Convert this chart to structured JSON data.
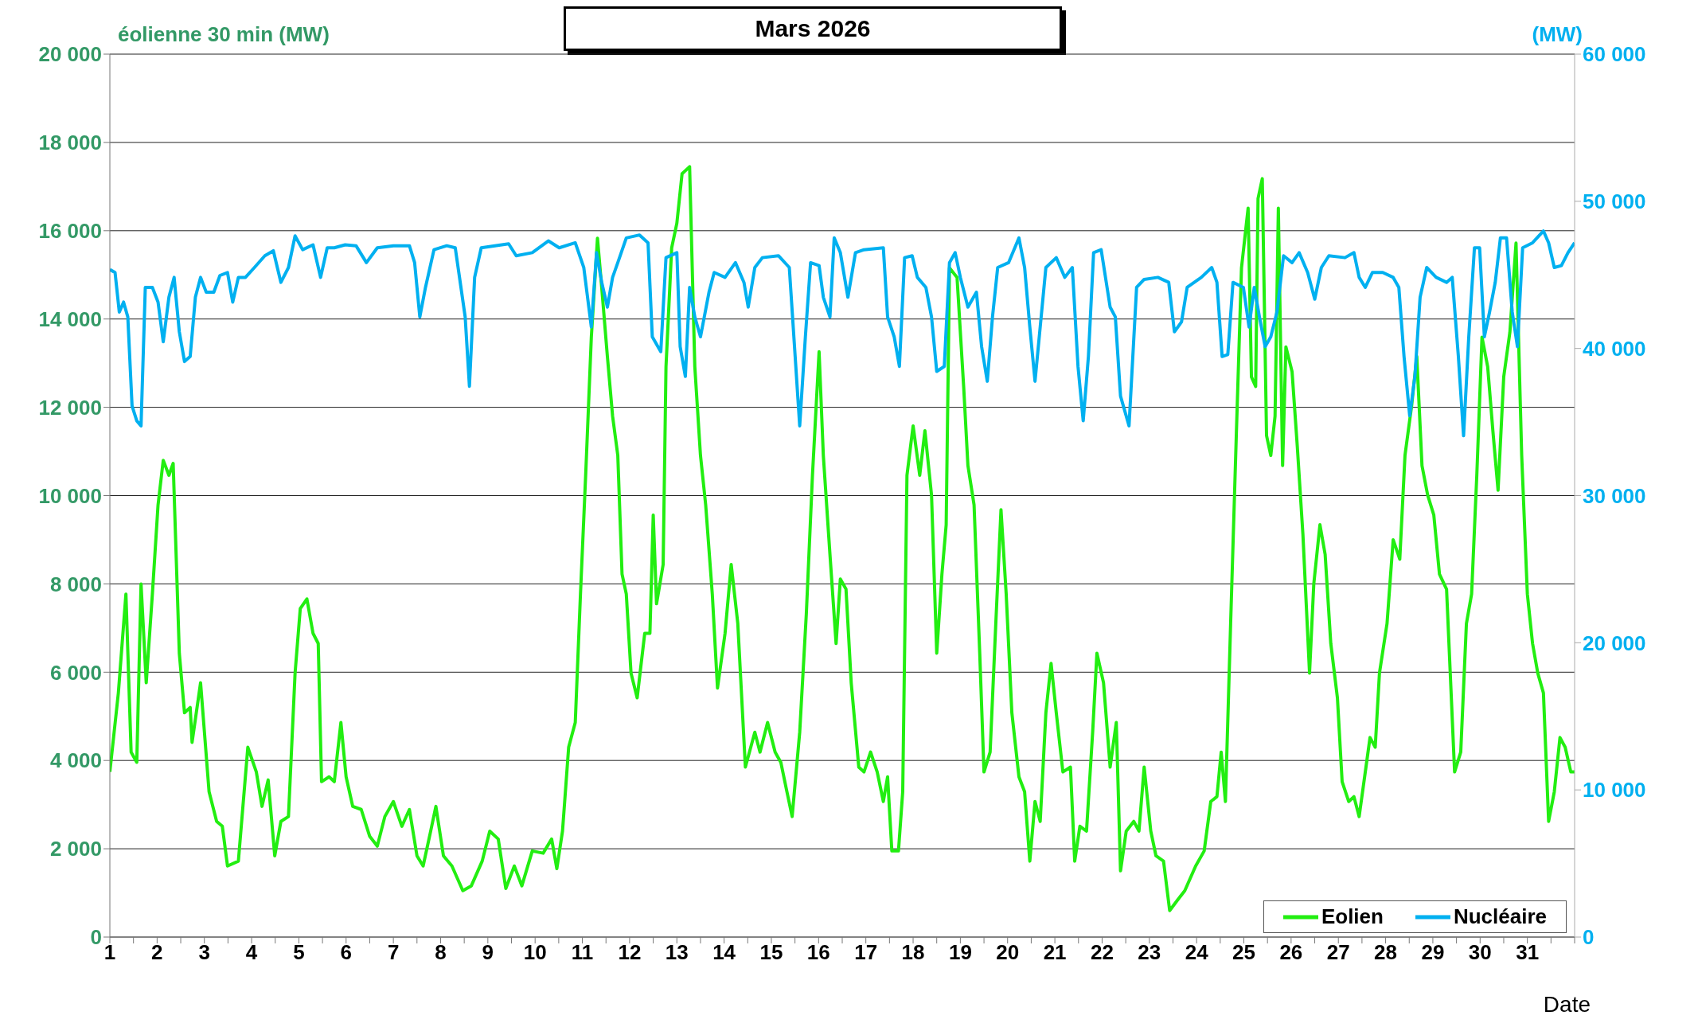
{
  "chart_data": {
    "type": "line",
    "title": "Mars 2026",
    "ylabel": "éolienne 30 min (MW)",
    "y2label": "(MW)",
    "xlabel": "Date",
    "xlim": [
      1,
      32
    ],
    "xticks": [
      1,
      {
        "value": 1.5,
        "label": null
      },
      2,
      {
        "value": 2.5,
        "label": null
      },
      3,
      {
        "value": 3.5,
        "label": null
      },
      4,
      {
        "value": 4.5,
        "label": null
      },
      5,
      {
        "value": 5.5,
        "label": null
      },
      6,
      {
        "value": 6.5,
        "label": null
      },
      7,
      {
        "value": 7.5,
        "label": null
      },
      8,
      {
        "value": 8.5,
        "label": null
      },
      9,
      {
        "value": 9.5,
        "label": null
      },
      10,
      {
        "value": 10.5,
        "label": null
      },
      11,
      {
        "value": 11.5,
        "label": null
      },
      12,
      {
        "value": 12.5,
        "label": null
      },
      13,
      {
        "value": 13.5,
        "label": null
      },
      14,
      {
        "value": 14.5,
        "label": null
      },
      15,
      {
        "value": 15.5,
        "label": null
      },
      16,
      {
        "value": 16.5,
        "label": null
      },
      17,
      {
        "value": 17.5,
        "label": null
      },
      18,
      {
        "value": 18.5,
        "label": null
      },
      19,
      {
        "value": 19.5,
        "label": null
      },
      20,
      {
        "value": 20.5,
        "label": null
      },
      21,
      {
        "value": 21.5,
        "label": null
      },
      22,
      {
        "value": 22.5,
        "label": null
      },
      23,
      {
        "value": 23.5,
        "label": null
      },
      24,
      {
        "value": 24.5,
        "label": null
      },
      25,
      {
        "value": 25.5,
        "label": null
      },
      26,
      {
        "value": 26.5,
        "label": null
      },
      27,
      {
        "value": 27.5,
        "label": null
      },
      28,
      {
        "value": 28.5,
        "label": null
      },
      29,
      {
        "value": 29.5,
        "label": null
      },
      30,
      {
        "value": 30.5,
        "label": null
      },
      31,
      {
        "value": 31.5,
        "label": null
      },
      {
        "value": 32,
        "label": null
      }
    ],
    "ylim": [
      0,
      20000
    ],
    "yticks": [
      0,
      {
        "value": 2000,
        "label": "2 000"
      },
      {
        "value": 4000,
        "label": "4 000"
      },
      {
        "value": 6000,
        "label": "6 000"
      },
      {
        "value": 8000,
        "label": "8 000"
      },
      {
        "value": 10000,
        "label": "10 000"
      },
      {
        "value": 12000,
        "label": "12 000"
      },
      {
        "value": 14000,
        "label": "14 000"
      },
      {
        "value": 16000,
        "label": "16 000"
      },
      {
        "value": 18000,
        "label": "18 000"
      },
      {
        "value": 20000,
        "label": "20 000"
      }
    ],
    "y2lim": [
      0,
      60000
    ],
    "y2ticks": [
      0,
      {
        "value": 10000,
        "label": "10 000"
      },
      {
        "value": 20000,
        "label": "20 000"
      },
      {
        "value": 30000,
        "label": "30 000"
      },
      {
        "value": 40000,
        "label": "40 000"
      },
      {
        "value": 50000,
        "label": "50 000"
      },
      {
        "value": 60000,
        "label": "60 000"
      }
    ],
    "grid": "y",
    "legend": "bottom",
    "marker": "none",
    "line_style": "solid",
    "series": [
      {
        "name": "Eolien",
        "color": "#22ee11",
        "x": [
          1.0,
          1.18,
          1.34,
          1.45,
          1.57,
          1.66,
          1.77,
          1.9,
          2.02,
          2.13,
          2.25,
          2.34,
          2.47,
          2.58,
          2.7,
          2.74,
          2.92,
          3.1,
          3.26,
          3.38,
          3.49,
          3.72,
          3.92,
          4.1,
          4.22,
          4.35,
          4.49,
          4.62,
          4.78,
          4.92,
          5.03,
          5.17,
          5.3,
          5.41,
          5.48,
          5.64,
          5.75,
          5.89,
          6.0,
          6.14,
          6.32,
          6.5,
          6.66,
          6.82,
          7.0,
          7.18,
          7.34,
          7.5,
          7.63,
          7.79,
          7.9,
          8.06,
          8.24,
          8.47,
          8.65,
          8.88,
          9.04,
          9.22,
          9.38,
          9.56,
          9.72,
          9.94,
          10.17,
          10.35,
          10.46,
          10.58,
          10.71,
          10.85,
          10.96,
          11.07,
          11.19,
          11.32,
          11.41,
          11.53,
          11.64,
          11.75,
          11.84,
          11.93,
          12.03,
          12.16,
          12.32,
          12.43,
          12.5,
          12.57,
          12.71,
          12.77,
          12.89,
          13.0,
          13.11,
          13.27,
          13.38,
          13.5,
          13.61,
          13.75,
          13.86,
          14.02,
          14.15,
          14.29,
          14.45,
          14.65,
          14.76,
          14.92,
          15.08,
          15.2,
          15.33,
          15.44,
          15.6,
          15.74,
          15.87,
          16.01,
          16.1,
          16.24,
          16.37,
          16.46,
          16.58,
          16.69,
          16.85,
          16.96,
          17.1,
          17.24,
          17.37,
          17.46,
          17.55,
          17.69,
          17.78,
          17.87,
          18.0,
          18.14,
          18.25,
          18.39,
          18.5,
          18.61,
          18.7,
          18.77,
          18.93,
          19.07,
          19.16,
          19.29,
          19.41,
          19.5,
          19.63,
          19.75,
          19.86,
          19.97,
          20.09,
          20.24,
          20.36,
          20.47,
          20.58,
          20.69,
          20.81,
          20.92,
          21.03,
          21.17,
          21.33,
          21.42,
          21.53,
          21.67,
          21.8,
          21.89,
          22.03,
          22.17,
          22.3,
          22.39,
          22.51,
          22.67,
          22.78,
          22.89,
          23.03,
          23.14,
          23.3,
          23.43,
          23.59,
          23.75,
          23.98,
          24.16,
          24.3,
          24.43,
          24.52,
          24.61,
          24.72,
          24.84,
          24.95,
          25.09,
          25.16,
          25.25,
          25.3,
          25.39,
          25.48,
          25.57,
          25.66,
          25.73,
          25.82,
          25.89,
          26.02,
          26.13,
          26.25,
          26.39,
          26.48,
          26.61,
          26.72,
          26.84,
          26.98,
          27.08,
          27.22,
          27.33,
          27.44,
          27.57,
          27.67,
          27.78,
          27.87,
          28.03,
          28.16,
          28.3,
          28.41,
          28.55,
          28.66,
          28.77,
          28.89,
          29.02,
          29.14,
          29.29,
          29.46,
          29.59,
          29.71,
          29.82,
          29.93,
          30.04,
          30.16,
          30.27,
          30.38,
          30.5,
          30.63,
          30.76,
          30.88,
          31.0,
          31.11,
          31.22,
          31.34,
          31.45,
          31.57,
          31.69,
          31.8,
          31.92,
          32.0
        ],
        "values": [
          3740,
          5530,
          7770,
          4190,
          3960,
          8000,
          5760,
          7770,
          9790,
          10800,
          10460,
          10730,
          6430,
          5080,
          5200,
          4410,
          5760,
          3290,
          2620,
          2510,
          1610,
          1720,
          4300,
          3740,
          2960,
          3560,
          1840,
          2620,
          2730,
          5980,
          7440,
          7660,
          6880,
          6650,
          3520,
          3630,
          3520,
          4860,
          3630,
          2960,
          2890,
          2280,
          2060,
          2730,
          3070,
          2510,
          2890,
          1840,
          1610,
          2400,
          2960,
          1840,
          1610,
          1050,
          1160,
          1720,
          2400,
          2220,
          1100,
          1610,
          1160,
          1950,
          1900,
          2220,
          1550,
          2400,
          4300,
          4860,
          7770,
          10460,
          13590,
          15830,
          14710,
          13150,
          11800,
          10910,
          8220,
          7770,
          5980,
          5420,
          6880,
          6880,
          9560,
          7550,
          8440,
          12920,
          15610,
          16170,
          17290,
          17450,
          12920,
          10910,
          9790,
          7770,
          5640,
          6880,
          8440,
          7100,
          3850,
          4640,
          4190,
          4860,
          4190,
          3960,
          3290,
          2730,
          4640,
          7320,
          10460,
          13260,
          10910,
          8670,
          6650,
          8110,
          7880,
          5760,
          3850,
          3740,
          4190,
          3740,
          3070,
          3630,
          1950,
          1950,
          3290,
          10460,
          11580,
          10460,
          11470,
          10010,
          6430,
          8220,
          9340,
          15160,
          14940,
          12470,
          10680,
          9790,
          6430,
          3740,
          4190,
          7100,
          9680,
          7770,
          5080,
          3630,
          3290,
          1720,
          3070,
          2620,
          5080,
          6200,
          5080,
          3740,
          3850,
          1720,
          2510,
          2400,
          4640,
          6430,
          5760,
          3850,
          4860,
          1500,
          2400,
          2620,
          2400,
          3850,
          2400,
          1840,
          1720,
          600,
          830,
          1050,
          1610,
          1950,
          3070,
          3180,
          4190,
          3070,
          7100,
          11360,
          15160,
          16510,
          12690,
          12470,
          16730,
          17180,
          11360,
          10910,
          11800,
          16510,
          10680,
          13370,
          12810,
          11130,
          9120,
          5980,
          8000,
          9340,
          8670,
          6650,
          5420,
          3520,
          3070,
          3180,
          2730,
          3740,
          4520,
          4300,
          5980,
          7100,
          9000,
          8560,
          10910,
          12030,
          13150,
          10680,
          10010,
          9560,
          8220,
          7880,
          3740,
          4190,
          7100,
          7770,
          10460,
          13590,
          12920,
          11470,
          10120,
          12690,
          13700,
          15720,
          10910,
          7770,
          6650,
          5980,
          5530,
          2620,
          3290,
          4520,
          4300,
          3740,
          3740
        ]
      },
      {
        "name": "Nucléaire",
        "color": "#00b0f0",
        "axis": "y2",
        "x": [
          1.0,
          1.11,
          1.2,
          1.29,
          1.38,
          1.47,
          1.57,
          1.66,
          1.75,
          1.9,
          2.02,
          2.13,
          2.25,
          2.36,
          2.47,
          2.58,
          2.7,
          2.81,
          2.92,
          3.04,
          3.2,
          3.33,
          3.49,
          3.6,
          3.72,
          3.87,
          4.06,
          4.28,
          4.46,
          4.62,
          4.78,
          4.92,
          5.08,
          5.3,
          5.46,
          5.6,
          5.75,
          5.98,
          6.21,
          6.43,
          6.66,
          7.0,
          7.34,
          7.45,
          7.56,
          7.68,
          7.86,
          8.13,
          8.31,
          8.4,
          8.52,
          8.61,
          8.72,
          8.86,
          9.15,
          9.44,
          9.6,
          9.94,
          10.28,
          10.51,
          10.85,
          11.03,
          11.19,
          11.3,
          11.41,
          11.53,
          11.64,
          11.75,
          11.93,
          12.21,
          12.39,
          12.48,
          12.66,
          12.77,
          13.0,
          13.07,
          13.18,
          13.27,
          13.38,
          13.5,
          13.68,
          13.79,
          14.02,
          14.24,
          14.42,
          14.51,
          14.65,
          14.81,
          15.15,
          15.38,
          15.49,
          15.6,
          15.72,
          15.83,
          16.01,
          16.1,
          16.24,
          16.33,
          16.46,
          16.62,
          16.78,
          16.96,
          17.37,
          17.46,
          17.6,
          17.71,
          17.82,
          17.98,
          18.09,
          18.27,
          18.39,
          18.5,
          18.66,
          18.77,
          18.89,
          19.0,
          19.16,
          19.34,
          19.45,
          19.57,
          19.68,
          19.79,
          20.02,
          20.24,
          20.36,
          20.47,
          20.58,
          20.69,
          20.81,
          21.03,
          21.21,
          21.37,
          21.49,
          21.6,
          21.71,
          21.82,
          21.98,
          22.17,
          22.28,
          22.39,
          22.57,
          22.73,
          22.89,
          23.18,
          23.41,
          23.53,
          23.68,
          23.8,
          24.1,
          24.32,
          24.43,
          24.54,
          24.66,
          24.77,
          24.99,
          25.11,
          25.22,
          25.33,
          25.45,
          25.57,
          25.7,
          25.84,
          26.02,
          26.17,
          26.35,
          26.5,
          26.64,
          26.8,
          27.14,
          27.33,
          27.44,
          27.57,
          27.72,
          27.94,
          28.16,
          28.28,
          28.39,
          28.51,
          28.62,
          28.73,
          28.87,
          29.07,
          29.29,
          29.41,
          29.54,
          29.65,
          29.76,
          29.88,
          29.99,
          30.09,
          30.2,
          30.32,
          30.43,
          30.56,
          30.68,
          30.79,
          30.9,
          31.11,
          31.34,
          31.45,
          31.57,
          31.72,
          31.86,
          32.0
        ],
        "values": [
          45360,
          45160,
          42470,
          43150,
          42140,
          36090,
          35080,
          34740,
          44150,
          44150,
          43150,
          40460,
          43480,
          44830,
          41130,
          39110,
          39450,
          43480,
          44830,
          43820,
          43820,
          44960,
          45160,
          43150,
          44830,
          44830,
          45500,
          46300,
          46640,
          44490,
          45500,
          47650,
          46710,
          47040,
          44830,
          46840,
          46840,
          47040,
          46980,
          45830,
          46840,
          46980,
          46980,
          45830,
          42140,
          44150,
          46710,
          46980,
          46840,
          44830,
          42140,
          37430,
          44830,
          46840,
          46980,
          47110,
          46300,
          46510,
          47310,
          46840,
          47180,
          45500,
          41460,
          46510,
          44490,
          42810,
          44830,
          45830,
          47510,
          47710,
          47180,
          40790,
          39780,
          46170,
          46510,
          40120,
          38100,
          44150,
          42140,
          40790,
          43820,
          45160,
          44830,
          45830,
          44490,
          42810,
          45500,
          46170,
          46300,
          45500,
          40120,
          34740,
          40790,
          45830,
          45630,
          43480,
          42140,
          47510,
          46510,
          43480,
          46510,
          46710,
          46840,
          42140,
          40790,
          38780,
          46170,
          46300,
          44830,
          44150,
          42140,
          38440,
          38780,
          45830,
          46510,
          44830,
          42810,
          43820,
          40120,
          37770,
          42140,
          45500,
          45830,
          47510,
          45500,
          41460,
          37770,
          41460,
          45500,
          46170,
          44830,
          45500,
          38780,
          35080,
          39450,
          46510,
          46710,
          42810,
          42140,
          36760,
          34740,
          44150,
          44690,
          44830,
          44490,
          41130,
          41800,
          44150,
          44830,
          45500,
          44490,
          39450,
          39580,
          44490,
          44150,
          41460,
          44150,
          42140,
          40120,
          40790,
          42470,
          46300,
          45830,
          46510,
          45160,
          43350,
          45500,
          46300,
          46170,
          46510,
          44830,
          44150,
          45160,
          45160,
          44830,
          44150,
          39450,
          35420,
          38100,
          43480,
          45500,
          44830,
          44490,
          44830,
          39450,
          34070,
          40790,
          46840,
          46840,
          40790,
          42470,
          44490,
          47510,
          47510,
          42470,
          40120,
          46840,
          47180,
          47980,
          47180,
          45500,
          45630,
          46510,
          47180
        ]
      }
    ]
  }
}
